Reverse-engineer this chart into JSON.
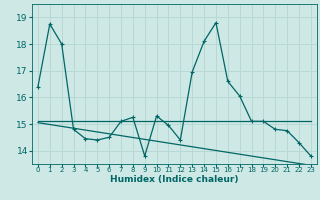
{
  "xlabel": "Humidex (Indice chaleur)",
  "background_color": "#cde8e5",
  "grid_color": "#b8d8d4",
  "line_color": "#006666",
  "xlim": [
    -0.5,
    23.5
  ],
  "ylim": [
    13.5,
    19.5
  ],
  "yticks": [
    14,
    15,
    16,
    17,
    18,
    19
  ],
  "xticks": [
    0,
    1,
    2,
    3,
    4,
    5,
    6,
    7,
    8,
    9,
    10,
    11,
    12,
    13,
    14,
    15,
    16,
    17,
    18,
    19,
    20,
    21,
    22,
    23
  ],
  "series1_x": [
    0,
    1,
    2,
    3,
    4,
    5,
    6,
    7,
    8,
    9,
    10,
    11,
    12,
    13,
    14,
    15,
    16,
    17,
    18,
    19,
    20,
    21,
    22,
    23
  ],
  "series1_y": [
    16.4,
    18.75,
    18.0,
    14.8,
    14.45,
    14.4,
    14.5,
    15.1,
    15.25,
    13.8,
    15.3,
    14.95,
    14.4,
    16.95,
    18.1,
    18.8,
    16.6,
    16.05,
    15.1,
    15.1,
    14.8,
    14.75,
    14.3,
    13.8
  ],
  "series2_x": [
    0,
    23
  ],
  "series2_y": [
    15.1,
    15.1
  ],
  "series3_x": [
    0,
    23
  ],
  "series3_y": [
    15.05,
    13.45
  ]
}
